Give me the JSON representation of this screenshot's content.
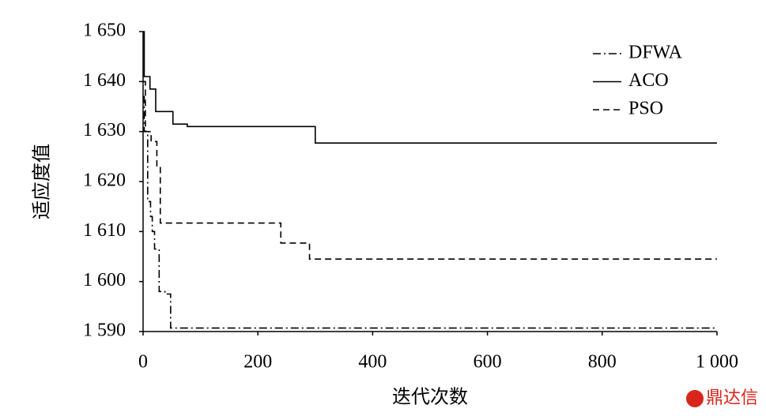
{
  "chart_data": {
    "type": "line",
    "x_label": "迭代次数",
    "y_label": "适应度值",
    "xlim": [
      0,
      1000
    ],
    "ylim": [
      1590,
      1650
    ],
    "xticks": [
      0,
      200,
      400,
      600,
      800,
      {
        "value": 1000,
        "label": "1 000"
      }
    ],
    "yticks": [
      {
        "value": 1590,
        "label": "1 590"
      },
      {
        "value": 1600,
        "label": "1 600"
      },
      {
        "value": 1610,
        "label": "1 610"
      },
      {
        "value": 1620,
        "label": "1 620"
      },
      {
        "value": 1630,
        "label": "1 630"
      },
      {
        "value": 1640,
        "label": "1 640"
      },
      {
        "value": 1650,
        "label": "1 650"
      }
    ],
    "grid": false,
    "legend": "upper right",
    "series": [
      {
        "name": "DFWA",
        "color": "#000000",
        "dash": "dashdot",
        "x": [
          0,
          2,
          2,
          8,
          8,
          13,
          13,
          16,
          16,
          20,
          20,
          28,
          28,
          38,
          38,
          48,
          48,
          1000
        ],
        "values": [
          1637,
          1637,
          1630,
          1630,
          1616,
          1616,
          1613,
          1613,
          1610,
          1610,
          1606.5,
          1606.5,
          1598,
          1598,
          1597.5,
          1597.5,
          1590.7,
          1590.7
        ]
      },
      {
        "name": "ACO",
        "color": "#000000",
        "dash": "solid",
        "x": [
          0,
          2,
          2,
          12,
          12,
          22,
          22,
          52,
          52,
          77,
          77,
          300,
          300,
          1000
        ],
        "values": [
          1650,
          1650,
          1641,
          1641,
          1638.5,
          1638.5,
          1634,
          1634,
          1631.5,
          1631.5,
          1631,
          1631,
          1627.7,
          1627.7
        ]
      },
      {
        "name": "PSO",
        "color": "#000000",
        "dash": "dashed",
        "x": [
          0,
          4,
          4,
          14,
          14,
          24,
          24,
          30,
          30,
          240,
          240,
          290,
          290,
          1000
        ],
        "values": [
          1640,
          1640,
          1630,
          1630,
          1628,
          1628,
          1623,
          1623,
          1611.7,
          1611.7,
          1607.7,
          1607.7,
          1604.5,
          1604.5
        ]
      }
    ]
  },
  "watermark": "鼎达信"
}
